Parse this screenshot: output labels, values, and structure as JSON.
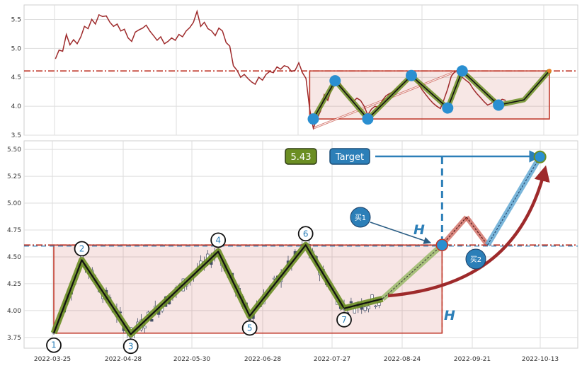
{
  "chart_data": [
    {
      "type": "line",
      "panel": "top",
      "title": "",
      "xlabel": "",
      "ylabel": "",
      "ylim": [
        3.5,
        5.75
      ],
      "yticks": [
        "3.5",
        "4.0",
        "4.5",
        "5.0",
        "5.5"
      ],
      "grid": true,
      "series": [
        {
          "role": "price",
          "color": "#9e2a2b",
          "points": [
            [
              2,
              4.82
            ],
            [
              3,
              4.97
            ],
            [
              4,
              4.95
            ],
            [
              5,
              5.24
            ],
            [
              6,
              5.06
            ],
            [
              7,
              5.15
            ],
            [
              8,
              5.08
            ],
            [
              9,
              5.2
            ],
            [
              10,
              5.38
            ],
            [
              11,
              5.34
            ],
            [
              12,
              5.5
            ],
            [
              13,
              5.42
            ],
            [
              14,
              5.58
            ],
            [
              15,
              5.55
            ],
            [
              16,
              5.56
            ],
            [
              17,
              5.45
            ],
            [
              18,
              5.38
            ],
            [
              19,
              5.42
            ],
            [
              20,
              5.3
            ],
            [
              21,
              5.33
            ],
            [
              22,
              5.18
            ],
            [
              23,
              5.12
            ],
            [
              24,
              5.28
            ],
            [
              25,
              5.32
            ],
            [
              26,
              5.35
            ],
            [
              27,
              5.4
            ],
            [
              28,
              5.3
            ],
            [
              29,
              5.22
            ],
            [
              30,
              5.14
            ],
            [
              31,
              5.2
            ],
            [
              32,
              5.08
            ],
            [
              33,
              5.12
            ],
            [
              34,
              5.18
            ],
            [
              35,
              5.14
            ],
            [
              36,
              5.24
            ],
            [
              37,
              5.2
            ],
            [
              38,
              5.3
            ],
            [
              39,
              5.36
            ],
            [
              40,
              5.45
            ],
            [
              41,
              5.64
            ],
            [
              42,
              5.38
            ],
            [
              43,
              5.45
            ],
            [
              44,
              5.34
            ],
            [
              45,
              5.3
            ],
            [
              46,
              5.22
            ],
            [
              47,
              5.35
            ],
            [
              48,
              5.3
            ],
            [
              49,
              5.1
            ],
            [
              50,
              5.04
            ],
            [
              51,
              4.7
            ],
            [
              52,
              4.62
            ],
            [
              53,
              4.5
            ],
            [
              54,
              4.55
            ],
            [
              55,
              4.48
            ],
            [
              56,
              4.42
            ],
            [
              57,
              4.38
            ],
            [
              58,
              4.5
            ],
            [
              59,
              4.45
            ],
            [
              60,
              4.55
            ],
            [
              61,
              4.6
            ],
            [
              62,
              4.58
            ],
            [
              63,
              4.68
            ],
            [
              64,
              4.64
            ],
            [
              65,
              4.7
            ],
            [
              66,
              4.68
            ],
            [
              67,
              4.6
            ],
            [
              68,
              4.62
            ],
            [
              69,
              4.75
            ],
            [
              70,
              4.58
            ],
            [
              71,
              4.48
            ],
            [
              72,
              3.95
            ],
            [
              73,
              3.62
            ],
            [
              74,
              3.78
            ],
            [
              75,
              3.92
            ],
            [
              76,
              4.2
            ],
            [
              77,
              4.1
            ],
            [
              78,
              4.3
            ],
            [
              79,
              4.38
            ],
            [
              80,
              4.45
            ],
            [
              81,
              4.32
            ],
            [
              82,
              4.22
            ],
            [
              83,
              4.18
            ],
            [
              84,
              4.08
            ],
            [
              85,
              4.14
            ],
            [
              86,
              4.1
            ],
            [
              87,
              4.0
            ],
            [
              88,
              3.85
            ],
            [
              89,
              3.95
            ],
            [
              90,
              4.0
            ],
            [
              91,
              3.98
            ],
            [
              92,
              4.1
            ],
            [
              93,
              4.18
            ],
            [
              94,
              4.22
            ],
            [
              95,
              4.25
            ],
            [
              96,
              4.3
            ],
            [
              97,
              4.35
            ],
            [
              98,
              4.4
            ],
            [
              99,
              4.46
            ],
            [
              100,
              4.52
            ],
            [
              101,
              4.5
            ],
            [
              102,
              4.38
            ],
            [
              103,
              4.28
            ],
            [
              104,
              4.2
            ],
            [
              105,
              4.12
            ],
            [
              106,
              4.05
            ],
            [
              107,
              4.0
            ],
            [
              108,
              3.96
            ],
            [
              109,
              4.12
            ],
            [
              110,
              4.3
            ],
            [
              111,
              4.52
            ],
            [
              112,
              4.6
            ],
            [
              113,
              4.62
            ],
            [
              114,
              4.5
            ],
            [
              115,
              4.45
            ],
            [
              116,
              4.4
            ],
            [
              117,
              4.3
            ],
            [
              118,
              4.22
            ],
            [
              119,
              4.15
            ],
            [
              120,
              4.08
            ],
            [
              121,
              4.02
            ],
            [
              122,
              4.05
            ],
            [
              123,
              4.12
            ],
            [
              124,
              4.08
            ],
            [
              125,
              4.12
            ],
            [
              126,
              4.1
            ]
          ]
        },
        {
          "role": "zigzag",
          "color": "#556b2f",
          "points": [
            [
              73,
              3.78
            ],
            [
              79,
              4.44
            ],
            [
              88,
              3.78
            ],
            [
              100,
              4.53
            ],
            [
              110,
              3.97
            ],
            [
              114,
              4.61
            ],
            [
              124,
              4.02
            ],
            [
              131,
              4.11
            ],
            [
              138,
              4.61
            ]
          ]
        }
      ],
      "pivots": [
        [
          73,
          3.78
        ],
        [
          79,
          4.44
        ],
        [
          88,
          3.78
        ],
        [
          100,
          4.53
        ],
        [
          110,
          3.97
        ],
        [
          114,
          4.61
        ],
        [
          124,
          4.02
        ]
      ],
      "box": {
        "x0": 72,
        "x1": 138,
        "y0": 3.78,
        "y1": 4.61
      },
      "reference_line": 4.61,
      "trend_line": [
        [
          73,
          3.62
        ],
        [
          113,
          4.62
        ]
      ]
    },
    {
      "type": "candlestick",
      "panel": "bottom",
      "title": "",
      "xlabel": "",
      "ylabel": "",
      "ylim": [
        3.65,
        5.58
      ],
      "yticks": [
        "3.75",
        "4.00",
        "4.25",
        "4.50",
        "4.75",
        "5.00",
        "5.25",
        "5.50"
      ],
      "xticks": [
        "2022-03-25",
        "2022-04-28",
        "2022-05-30",
        "2022-06-28",
        "2022-07-27",
        "2022-08-24",
        "2022-09-21",
        "2022-10-13"
      ],
      "grid": true,
      "zigzag": [
        [
          0,
          3.79
        ],
        [
          8,
          4.47
        ],
        [
          22,
          3.78
        ],
        [
          47,
          4.55
        ],
        [
          56,
          3.95
        ],
        [
          72,
          4.61
        ],
        [
          83,
          4.02
        ],
        [
          94,
          4.11
        ],
        [
          111,
          4.61
        ]
      ],
      "projection": [
        [
          111,
          4.61
        ],
        [
          118,
          4.87
        ],
        [
          124,
          4.61
        ],
        [
          139,
          5.43
        ]
      ],
      "pivot_labels": [
        {
          "text": "1",
          "at": [
            0,
            3.79
          ]
        },
        {
          "text": "2",
          "at": [
            8,
            4.47
          ]
        },
        {
          "text": "3",
          "at": [
            22,
            3.78
          ]
        },
        {
          "text": "4",
          "at": [
            47,
            4.55
          ]
        },
        {
          "text": "5",
          "at": [
            56,
            3.95
          ]
        },
        {
          "text": "6",
          "at": [
            72,
            4.61
          ]
        },
        {
          "text": "7",
          "at": [
            83,
            4.02
          ]
        }
      ],
      "box": {
        "x0": 0,
        "x1": 111,
        "y0": 3.79,
        "y1": 4.61
      },
      "resistance": 4.61,
      "target_value": "5.43",
      "target_label": "Target",
      "buy1_label": "买1",
      "buy2_label": "买2",
      "height_label": "H",
      "colors": {
        "up": "#ffffff",
        "down": "#444e66",
        "zigzag": "#556b2f",
        "box": "#c0392b",
        "target": "#2c7fb8",
        "curve": "#9e2a2b",
        "value_badge": "#6b8e23"
      }
    }
  ]
}
